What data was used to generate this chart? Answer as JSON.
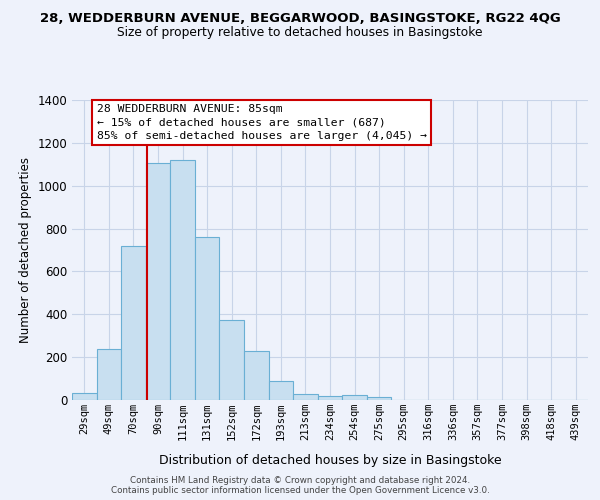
{
  "title_line1": "28, WEDDERBURN AVENUE, BEGGARWOOD, BASINGSTOKE, RG22 4QG",
  "title_line2": "Size of property relative to detached houses in Basingstoke",
  "xlabel": "Distribution of detached houses by size in Basingstoke",
  "ylabel": "Number of detached properties",
  "bar_labels": [
    "29sqm",
    "49sqm",
    "70sqm",
    "90sqm",
    "111sqm",
    "131sqm",
    "152sqm",
    "172sqm",
    "193sqm",
    "213sqm",
    "234sqm",
    "254sqm",
    "275sqm",
    "295sqm",
    "316sqm",
    "336sqm",
    "357sqm",
    "377sqm",
    "398sqm",
    "418sqm",
    "439sqm"
  ],
  "bar_values": [
    35,
    240,
    718,
    1105,
    1120,
    760,
    375,
    228,
    90,
    30,
    18,
    22,
    12,
    0,
    0,
    0,
    0,
    0,
    0,
    0,
    0
  ],
  "bar_fill_color": "#c8dff0",
  "bar_edge_color": "#6aafd4",
  "grid_color": "#c8d4e8",
  "annotation_line1": "28 WEDDERBURN AVENUE: 85sqm",
  "annotation_line2": "← 15% of detached houses are smaller (687)",
  "annotation_line3": "85% of semi-detached houses are larger (4,045) →",
  "annotation_box_color": "#ffffff",
  "annotation_box_edge": "#cc0000",
  "vline_color": "#cc0000",
  "vline_x_index": 2.55,
  "ylim": [
    0,
    1400
  ],
  "yticks": [
    0,
    200,
    400,
    600,
    800,
    1000,
    1200,
    1400
  ],
  "footer_line1": "Contains HM Land Registry data © Crown copyright and database right 2024.",
  "footer_line2": "Contains public sector information licensed under the Open Government Licence v3.0.",
  "bg_color": "#eef2fb"
}
